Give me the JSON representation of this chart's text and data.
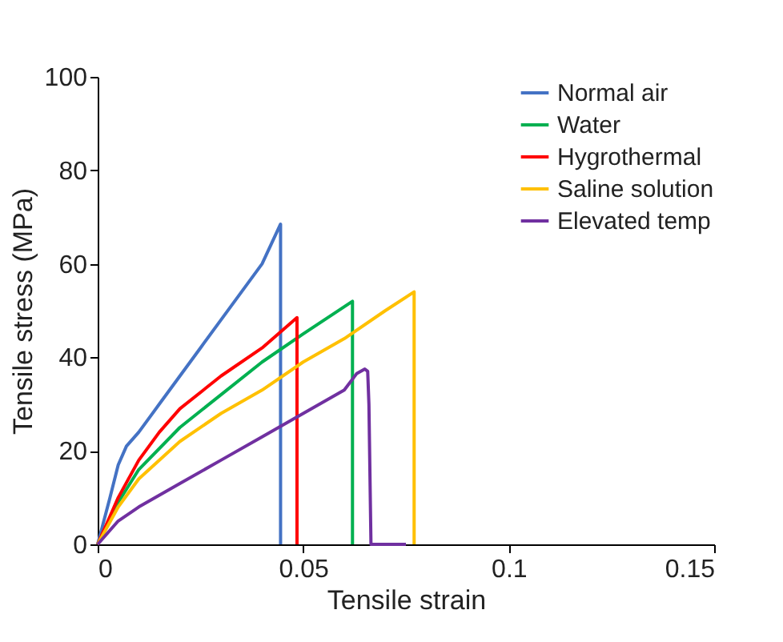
{
  "chart_data": {
    "type": "line",
    "xlabel": "Tensile strain",
    "ylabel": "Tensile stress (MPa)",
    "xlim": [
      0,
      0.15
    ],
    "xticks": [
      {
        "value": 0,
        "label": "0"
      },
      0.05,
      {
        "value": 0.1,
        "label": "0.1"
      },
      0.15
    ],
    "ylim": [
      0,
      100
    ],
    "yticks": [
      0,
      20,
      40,
      60,
      80,
      100
    ],
    "grid": false,
    "legend": "top right",
    "marker": "none",
    "line_style": "solid",
    "series": [
      {
        "name": "Normal air",
        "color": "#4472c4",
        "x": [
          0,
          0.003,
          0.005,
          0.007,
          0.01,
          0.015,
          0.02,
          0.025,
          0.03,
          0.035,
          0.04,
          0.0445,
          0.0445
        ],
        "values": [
          0,
          10,
          17,
          21,
          24,
          30,
          36,
          42,
          48,
          54,
          60,
          68.5,
          0
        ]
      },
      {
        "name": "Water",
        "color": "#00b050",
        "x": [
          0,
          0.005,
          0.01,
          0.02,
          0.03,
          0.04,
          0.05,
          0.062,
          0.062
        ],
        "values": [
          0,
          9,
          16,
          25,
          32,
          39,
          45,
          52,
          0
        ]
      },
      {
        "name": "Hygrothermal",
        "color": "#ff0000",
        "x": [
          0,
          0.005,
          0.01,
          0.015,
          0.02,
          0.03,
          0.04,
          0.0485,
          0.0485
        ],
        "values": [
          0,
          10,
          18,
          24,
          29,
          36,
          42,
          48.5,
          0
        ]
      },
      {
        "name": "Saline solution",
        "color": "#ffc000",
        "x": [
          0,
          0.005,
          0.01,
          0.02,
          0.03,
          0.04,
          0.05,
          0.06,
          0.07,
          0.077,
          0.077
        ],
        "values": [
          0,
          8,
          14,
          22,
          28,
          33,
          39,
          44,
          50,
          54,
          0
        ]
      },
      {
        "name": "Elevated temp",
        "color": "#7030a0",
        "x": [
          0,
          0.005,
          0.01,
          0.02,
          0.03,
          0.04,
          0.05,
          0.06,
          0.063,
          0.065,
          0.0657,
          0.066,
          0.0665,
          0.07,
          0.075
        ],
        "values": [
          0,
          5,
          8,
          13,
          18,
          23,
          28,
          33,
          36.5,
          37.5,
          37,
          30,
          0,
          0,
          0
        ]
      }
    ]
  }
}
